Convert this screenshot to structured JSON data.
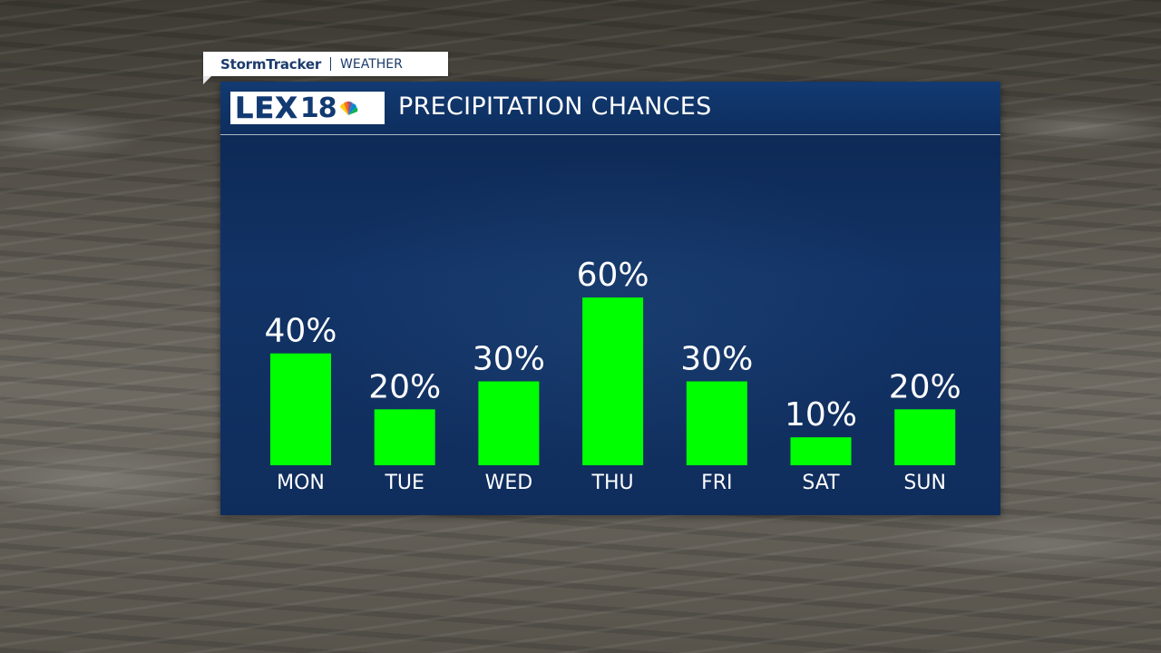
{
  "brand": {
    "storm_label": "StormTracker",
    "section_label": "WEATHER"
  },
  "logo": {
    "text": "LEX",
    "number": "18",
    "icon": "peacock-icon"
  },
  "panel": {
    "title": "PRECIPITATION CHANCES"
  },
  "colors": {
    "bar": "#00ff00",
    "panel": "#123366",
    "text": "#ffffff"
  },
  "chart_data": {
    "type": "bar",
    "categories": [
      "MON",
      "TUE",
      "WED",
      "THU",
      "FRI",
      "SAT",
      "SUN"
    ],
    "values": [
      40,
      20,
      30,
      60,
      30,
      10,
      20
    ],
    "value_labels": [
      "40%",
      "20%",
      "30%",
      "60%",
      "30%",
      "10%",
      "20%"
    ],
    "title": "PRECIPITATION CHANCES",
    "xlabel": "",
    "ylabel": "",
    "ylim": [
      0,
      60
    ],
    "grid": false,
    "legend": "none"
  }
}
